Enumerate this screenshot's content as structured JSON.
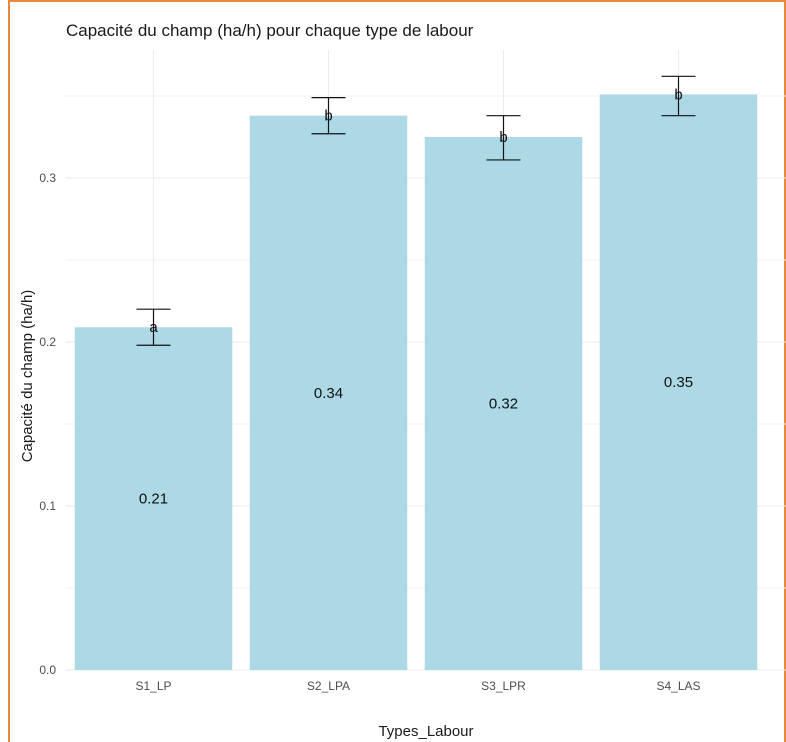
{
  "chart_data": {
    "type": "bar",
    "title": "Capacité du champ (ha/h) pour chaque type de labour",
    "xlabel": "Types_Labour",
    "ylabel": "Capacité du champ (ha/h)",
    "categories": [
      "S1_LP",
      "S2_LPA",
      "S3_LPR",
      "S4_LAS"
    ],
    "values": [
      0.209,
      0.338,
      0.325,
      0.351
    ],
    "value_labels": [
      "0.21",
      "0.34",
      "0.32",
      "0.35"
    ],
    "error_low": [
      0.198,
      0.327,
      0.311,
      0.338
    ],
    "error_high": [
      0.22,
      0.349,
      0.338,
      0.362
    ],
    "significance": [
      "a",
      "b",
      "b",
      "b"
    ],
    "ylim": [
      0,
      0.36
    ],
    "yticks": [
      0.0,
      0.1,
      0.2,
      0.3
    ],
    "ytick_labels": [
      "0.0",
      "0.1",
      "0.2",
      "0.3"
    ],
    "grid": true,
    "colors": {
      "bar": "#add8e6",
      "grid": "#ebebeb",
      "error": "#111111",
      "frame": "#e8883a"
    }
  }
}
